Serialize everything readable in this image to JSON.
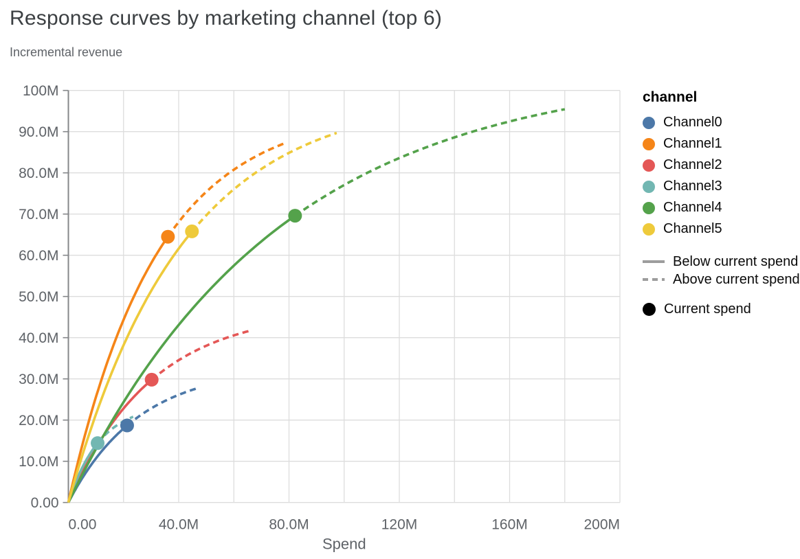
{
  "title": "Response curves by marketing channel (top 6)",
  "subtitle": "Incremental revenue",
  "colors": {
    "grid": "#dddddd",
    "axis_domain": "#85878a",
    "tick_label": "#5f6368",
    "title_text": "#3c4043",
    "subtitle_text": "#5f6368",
    "legend_text": "#0a0a0a",
    "line_style_swatch": "#9d9d9d",
    "current_spend_point": "#000000"
  },
  "chart_data": {
    "type": "line",
    "title": "Response curves by marketing channel (top 6)",
    "subtitle": "Incremental revenue",
    "xlabel": "Spend",
    "ylabel": "Incremental revenue",
    "units": "values in millions (M)",
    "xlim_M": [
      0,
      200
    ],
    "ylim_M": [
      0,
      100
    ],
    "x_grid_step_M": 20,
    "y_grid_step_M": 10,
    "grid": "both",
    "legend_position": "right",
    "x_ticks": [
      {
        "value_M": 0,
        "label": "0.00"
      },
      {
        "value_M": 40,
        "label": "40.0M"
      },
      {
        "value_M": 80,
        "label": "80.0M"
      },
      {
        "value_M": 120,
        "label": "120M"
      },
      {
        "value_M": 160,
        "label": "160M"
      },
      {
        "value_M": 200,
        "label": "200M"
      }
    ],
    "y_ticks": [
      {
        "value_M": 0,
        "label": "0.00"
      },
      {
        "value_M": 10,
        "label": "10.0M"
      },
      {
        "value_M": 20,
        "label": "20.0M"
      },
      {
        "value_M": 30,
        "label": "30.0M"
      },
      {
        "value_M": 40,
        "label": "40.0M"
      },
      {
        "value_M": 50,
        "label": "50.0M"
      },
      {
        "value_M": 60,
        "label": "60.0M"
      },
      {
        "value_M": 70,
        "label": "70.0M"
      },
      {
        "value_M": 80,
        "label": "80.0M"
      },
      {
        "value_M": 90,
        "label": "90.0M"
      },
      {
        "value_M": 100,
        "label": "100M"
      }
    ],
    "series": [
      {
        "name": "Channel0",
        "color": "#4c78a8",
        "current_spend_M": 21.3,
        "current_revenue_M": 18.7,
        "max_spend_M": 46.2,
        "max_revenue_M": 27.5,
        "curve": {
          "model": "A*(1-exp(-spend/tau))",
          "A_M": 33.0,
          "tau_M": 25.5
        }
      },
      {
        "name": "Channel1",
        "color": "#f58518",
        "current_spend_M": 36.1,
        "current_revenue_M": 64.5,
        "max_spend_M": 78.9,
        "max_revenue_M": 87.4,
        "curve": {
          "model": "A*(1-exp(-spend/tau))",
          "A_M": 95.4,
          "tau_M": 32.0
        }
      },
      {
        "name": "Channel2",
        "color": "#e45756",
        "current_spend_M": 30.2,
        "current_revenue_M": 29.8,
        "max_spend_M": 66.6,
        "max_revenue_M": 41.8,
        "curve": {
          "model": "A*(1-exp(-spend/tau))",
          "A_M": 46.9,
          "tau_M": 30.0
        }
      },
      {
        "name": "Channel3",
        "color": "#72b7b2",
        "current_spend_M": 10.6,
        "current_revenue_M": 14.4,
        "max_spend_M": 23.5,
        "max_revenue_M": 20.8,
        "curve": {
          "model": "A*(1-exp(-spend/tau))",
          "A_M": 23.9,
          "tau_M": 11.5
        }
      },
      {
        "name": "Channel4",
        "color": "#54a24b",
        "current_spend_M": 82.2,
        "current_revenue_M": 69.6,
        "max_spend_M": 180.0,
        "max_revenue_M": 95.4,
        "curve": {
          "model": "A*(1-exp(-spend/tau))",
          "A_M": 105.3,
          "tau_M": 76.0
        }
      },
      {
        "name": "Channel5",
        "color": "#eeca3b",
        "current_spend_M": 44.8,
        "current_revenue_M": 65.8,
        "max_spend_M": 97.3,
        "max_revenue_M": 89.7,
        "curve": {
          "model": "A*(1-exp(-spend/tau))",
          "A_M": 98.9,
          "tau_M": 41.0
        }
      }
    ]
  },
  "legend": {
    "title": "channel",
    "channels": [
      {
        "label": "Channel0",
        "color": "#4c78a8"
      },
      {
        "label": "Channel1",
        "color": "#f58518"
      },
      {
        "label": "Channel2",
        "color": "#e45756"
      },
      {
        "label": "Channel3",
        "color": "#72b7b2"
      },
      {
        "label": "Channel4",
        "color": "#54a24b"
      },
      {
        "label": "Channel5",
        "color": "#eeca3b"
      }
    ],
    "line_styles": [
      {
        "label": "Below current spend",
        "style": "solid"
      },
      {
        "label": "Above current spend",
        "style": "dashed"
      }
    ],
    "point": {
      "label": "Current spend",
      "color": "#000000"
    }
  }
}
